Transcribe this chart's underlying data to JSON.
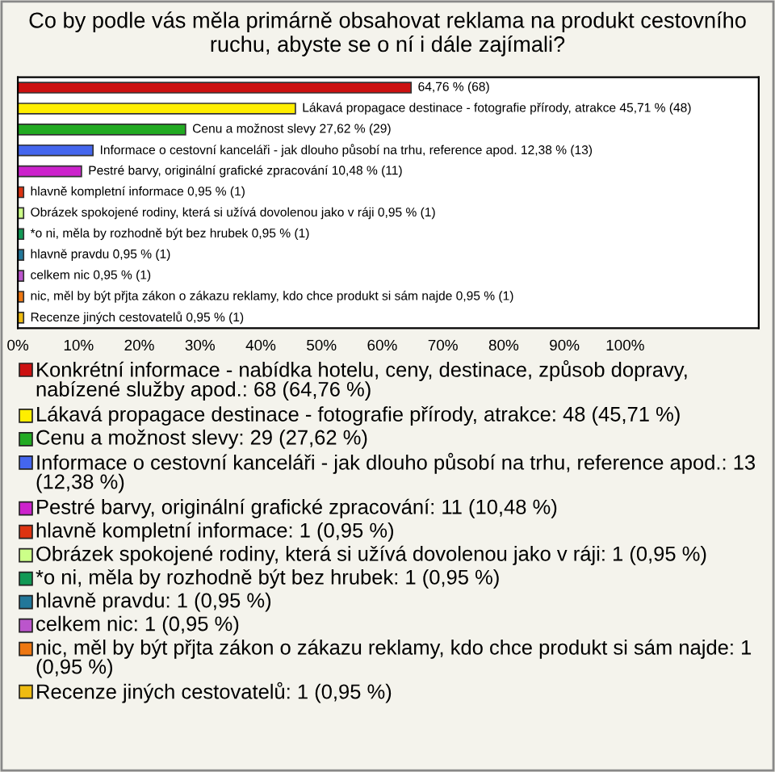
{
  "chart_data": {
    "type": "bar",
    "orientation": "horizontal",
    "title": "Co by podle vás měla primárně obsahovat reklama na produkt cestovního ruchu, abyste se o ní i dále zajímali?",
    "categories": [
      null,
      null,
      null,
      null,
      null,
      null,
      null,
      null,
      null,
      null,
      null,
      null
    ],
    "xlim": [
      0,
      122
    ],
    "xticks": [
      {
        "value": 0,
        "label": "0%"
      },
      {
        "value": 10,
        "label": "10%"
      },
      {
        "value": 20,
        "label": "20%"
      },
      {
        "value": 30,
        "label": "30%"
      },
      {
        "value": 40,
        "label": "40%"
      },
      {
        "value": 50,
        "label": "50%"
      },
      {
        "value": 60,
        "label": "60%"
      },
      {
        "value": 70,
        "label": "70%"
      },
      {
        "value": 80,
        "label": "80%"
      },
      {
        "value": 90,
        "label": "90%"
      },
      {
        "value": 100,
        "label": "100%"
      }
    ],
    "legend": "bottom",
    "grid": false,
    "series": [
      {
        "name": "Konkrétní informace - nabídka hotelu, ceny, destinace, způsob dopravy, nabízené služby apod.: 68 (64,76 %)",
        "color": "#cc1111",
        "values": [
          64.76,
          null,
          null,
          null,
          null,
          null,
          null,
          null,
          null,
          null,
          null,
          null
        ],
        "value_labels": [
          "64,76 % (68)",
          null,
          null,
          null,
          null,
          null,
          null,
          null,
          null,
          null,
          null,
          null
        ]
      },
      {
        "name": "Lákavá propagace destinace - fotografie přírody, atrakce: 48 (45,71 %)",
        "color": "#ffee00",
        "values": [
          null,
          45.71,
          null,
          null,
          null,
          null,
          null,
          null,
          null,
          null,
          null,
          null
        ],
        "value_labels": [
          null,
          "Lákavá propagace destinace - fotografie přírody, atrakce 45,71 % (48)",
          null,
          null,
          null,
          null,
          null,
          null,
          null,
          null,
          null,
          null
        ]
      },
      {
        "name": "Cenu a možnost slevy: 29 (27,62 %)",
        "color": "#22aa22",
        "values": [
          null,
          null,
          27.62,
          null,
          null,
          null,
          null,
          null,
          null,
          null,
          null,
          null
        ],
        "value_labels": [
          null,
          null,
          "Cenu a možnost slevy 27,62 % (29)",
          null,
          null,
          null,
          null,
          null,
          null,
          null,
          null,
          null
        ]
      },
      {
        "name": "Informace o cestovní kanceláři - jak dlouho působí na trhu, reference apod.: 13 (12,38 %)",
        "color": "#4466ee",
        "values": [
          null,
          null,
          null,
          12.38,
          null,
          null,
          null,
          null,
          null,
          null,
          null,
          null
        ],
        "value_labels": [
          null,
          null,
          null,
          "Informace o cestovní kanceláři - jak dlouho působí na trhu, reference apod. 12,38 % (13)",
          null,
          null,
          null,
          null,
          null,
          null,
          null,
          null
        ]
      },
      {
        "name": "Pestré barvy, originální grafické zpracování: 11 (10,48 %)",
        "color": "#cc22cc",
        "values": [
          null,
          null,
          null,
          null,
          10.48,
          null,
          null,
          null,
          null,
          null,
          null,
          null
        ],
        "value_labels": [
          null,
          null,
          null,
          null,
          "Pestré barvy, originální grafické zpracování 10,48 % (11)",
          null,
          null,
          null,
          null,
          null,
          null,
          null
        ]
      },
      {
        "name": "hlavně kompletní informace: 1 (0,95 %)",
        "color": "#dd3311",
        "values": [
          null,
          null,
          null,
          null,
          null,
          0.95,
          null,
          null,
          null,
          null,
          null,
          null
        ],
        "value_labels": [
          null,
          null,
          null,
          null,
          null,
          "hlavně kompletní informace 0,95 % (1)",
          null,
          null,
          null,
          null,
          null,
          null
        ]
      },
      {
        "name": "Obrázek spokojené rodiny, která si užívá dovolenou jako v ráji: 1 (0,95 %)",
        "color": "#ccff88",
        "values": [
          null,
          null,
          null,
          null,
          null,
          null,
          0.95,
          null,
          null,
          null,
          null,
          null
        ],
        "value_labels": [
          null,
          null,
          null,
          null,
          null,
          null,
          "Obrázek spokojené rodiny, která si užívá dovolenou jako v ráji 0,95 % (1)",
          null,
          null,
          null,
          null,
          null
        ]
      },
      {
        "name": "*o ni, měla by rozhodně být bez hrubek: 1 (0,95 %)",
        "color": "#119955",
        "values": [
          null,
          null,
          null,
          null,
          null,
          null,
          null,
          0.95,
          null,
          null,
          null,
          null
        ],
        "value_labels": [
          null,
          null,
          null,
          null,
          null,
          null,
          null,
          "*o ni, měla by rozhodně být bez hrubek 0,95 % (1)",
          null,
          null,
          null,
          null
        ]
      },
      {
        "name": "hlavně pravdu: 1 (0,95 %)",
        "color": "#227799",
        "values": [
          null,
          null,
          null,
          null,
          null,
          null,
          null,
          null,
          0.95,
          null,
          null,
          null
        ],
        "value_labels": [
          null,
          null,
          null,
          null,
          null,
          null,
          null,
          null,
          "hlavně pravdu 0,95 % (1)",
          null,
          null,
          null
        ]
      },
      {
        "name": "celkem nic: 1 (0,95 %)",
        "color": "#bb55cc",
        "values": [
          null,
          null,
          null,
          null,
          null,
          null,
          null,
          null,
          null,
          0.95,
          null,
          null
        ],
        "value_labels": [
          null,
          null,
          null,
          null,
          null,
          null,
          null,
          null,
          null,
          "celkem nic 0,95 % (1)",
          null,
          null
        ]
      },
      {
        "name": "nic, měl by být přjta zákon o zákazu reklamy, kdo chce produkt si sám najde: 1 (0,95 %)",
        "color": "#ee7711",
        "values": [
          null,
          null,
          null,
          null,
          null,
          null,
          null,
          null,
          null,
          null,
          0.95,
          null
        ],
        "value_labels": [
          null,
          null,
          null,
          null,
          null,
          null,
          null,
          null,
          null,
          null,
          "nic, měl by být přjta zákon o zákazu reklamy, kdo chce produkt si sám najde 0,95 % (1)",
          null
        ]
      },
      {
        "name": "Recenze jiných cestovatelů: 1 (0,95 %)",
        "color": "#eebb11",
        "values": [
          null,
          null,
          null,
          null,
          null,
          null,
          null,
          null,
          null,
          null,
          null,
          0.95
        ],
        "value_labels": [
          null,
          null,
          null,
          null,
          null,
          null,
          null,
          null,
          null,
          null,
          null,
          "Recenze jiných cestovatelů 0,95 % (1)"
        ]
      }
    ]
  }
}
